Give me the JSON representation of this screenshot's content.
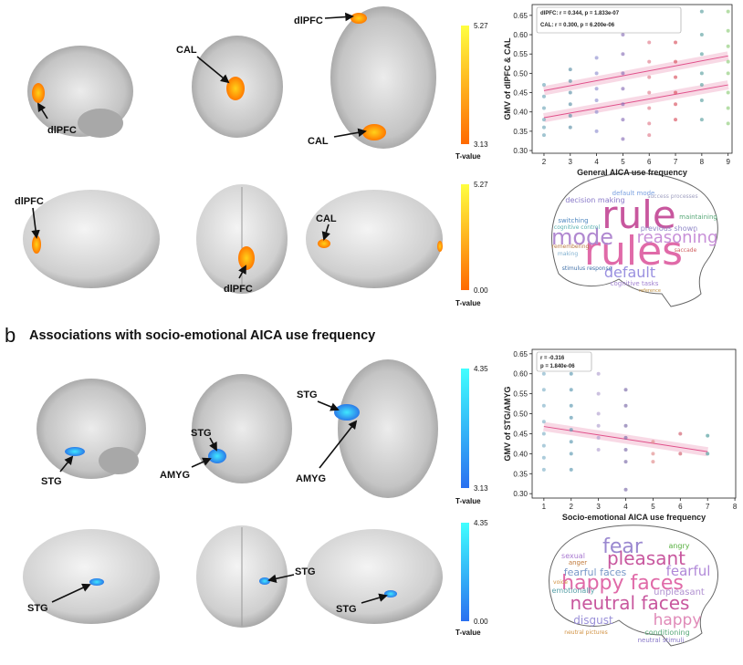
{
  "panel_label": "b",
  "heading": "Associations with socio-emotional AICA use frequency",
  "brain_labels": [
    "dlPFC",
    "CAL",
    "dlPFC",
    "CAL",
    "dlPFC",
    "dlPFC",
    "CAL",
    "STG",
    "STG",
    "AMYG",
    "STG",
    "AMYG",
    "STG",
    "STG",
    "STG"
  ],
  "colorbars": [
    {
      "max": "5.27",
      "min": "3.13",
      "label": "T-value"
    },
    {
      "max": "5.27",
      "min": "0.00",
      "label": "T-value"
    },
    {
      "max": "4.35",
      "min": "3.13",
      "label": "T-value"
    },
    {
      "max": "4.35",
      "min": "0.00",
      "label": "T-value"
    }
  ],
  "wordclouds": [
    [
      "rule",
      "rules",
      "mode",
      "reasoning",
      "default",
      "default mode",
      "decision making",
      "previous shown",
      "maintaining",
      "switching",
      "cognitive control",
      "remembering",
      "making",
      "cognitive tasks",
      "stimulus response",
      "saccade",
      "success processes",
      "reference"
    ],
    [
      "fear",
      "angry",
      "sexual",
      "anger",
      "pleasant",
      "fearful",
      "fearful faces",
      "happy faces",
      "unpleasant",
      "emotionally",
      "neutral faces",
      "disgust",
      "happy",
      "conditioning",
      "neutral stimuli",
      "voice",
      "neutral pictures"
    ]
  ],
  "chart_data": [
    {
      "type": "scatter",
      "xlabel": "General AICA use frequency",
      "ylabel": "GMV of dlPFC & CAL",
      "annotations": [
        "dlPFC: r = 0.344, p = 1.833e-07",
        "CAL: r = 0.300, p = 6.200e-06"
      ],
      "xlim": [
        1.55,
        9.15
      ],
      "ylim": [
        0.293,
        0.678
      ],
      "xticks": [
        2,
        3,
        4,
        5,
        6,
        7,
        8,
        9
      ],
      "yticks": [
        {
          "value": 0.3,
          "label": "0.30"
        },
        0.35,
        {
          "value": 0.4,
          "label": "0.40"
        },
        0.45,
        {
          "value": 0.5,
          "label": "0.50"
        },
        0.55,
        {
          "value": 0.6,
          "label": "0.60"
        },
        0.65
      ],
      "point_colors": [
        "#6fa6b8",
        "#5a8fa6",
        "#8f8fcf",
        "#8a70b8",
        "#e07a8a",
        "#d9505e",
        "#5aa0a0",
        "#8fcc7a"
      ],
      "x": [
        2,
        2,
        2,
        2,
        2,
        2,
        3,
        3,
        3,
        3,
        3,
        3,
        4,
        4,
        4,
        4,
        4,
        4,
        5,
        5,
        5,
        5,
        5,
        5,
        5,
        5,
        6,
        6,
        6,
        6,
        6,
        6,
        6,
        6,
        7,
        7,
        7,
        7,
        7,
        7,
        7,
        8,
        8,
        8,
        8,
        8,
        8,
        8,
        9,
        9,
        9,
        9,
        9,
        9,
        9,
        9
      ],
      "values": [
        0.47,
        0.44,
        0.41,
        0.38,
        0.36,
        0.34,
        0.51,
        0.48,
        0.45,
        0.42,
        0.39,
        0.36,
        0.54,
        0.5,
        0.46,
        0.43,
        0.4,
        0.35,
        0.66,
        0.6,
        0.55,
        0.5,
        0.46,
        0.42,
        0.38,
        0.33,
        0.64,
        0.58,
        0.53,
        0.49,
        0.45,
        0.41,
        0.37,
        0.34,
        0.63,
        0.58,
        0.53,
        0.49,
        0.45,
        0.42,
        0.38,
        0.66,
        0.6,
        0.55,
        0.5,
        0.47,
        0.43,
        0.38,
        0.66,
        0.61,
        0.57,
        0.53,
        0.5,
        0.45,
        0.41,
        0.37
      ],
      "fits": [
        {
          "x": [
            2,
            9
          ],
          "values": [
            0.455,
            0.545
          ]
        },
        {
          "x": [
            2,
            9
          ],
          "values": [
            0.385,
            0.47
          ]
        }
      ],
      "fit_color": "#e0508a"
    },
    {
      "type": "scatter",
      "xlabel": "Socio-emotional AICA use frequency",
      "ylabel": "GMV of STG/AMYG",
      "annotations": [
        "r = -0.316",
        "p = 1.840e-06"
      ],
      "xlim": [
        0.57,
        8.03
      ],
      "ylim": [
        0.289,
        0.661
      ],
      "xticks": [
        1,
        2,
        3,
        4,
        5,
        6,
        7,
        8
      ],
      "yticks": [
        {
          "value": 0.3,
          "label": "0.30"
        },
        0.35,
        {
          "value": 0.4,
          "label": "0.40"
        },
        0.45,
        {
          "value": 0.5,
          "label": "0.50"
        },
        0.55,
        {
          "value": 0.6,
          "label": "0.60"
        },
        0.65
      ],
      "point_colors": [
        "#7fb0c8",
        "#5a98b0",
        "#b0a0d0",
        "#7a68a8",
        "#e08a8a",
        "#d05a6a",
        "#4a9a9a",
        "#4a9a9a"
      ],
      "x": [
        1,
        1,
        1,
        1,
        1,
        1,
        1,
        1,
        1,
        2,
        2,
        2,
        2,
        2,
        2,
        2,
        2,
        3,
        3,
        3,
        3,
        3,
        3,
        4,
        4,
        4,
        4,
        4,
        4,
        4,
        5,
        5,
        5,
        6,
        6,
        7,
        7
      ],
      "values": [
        0.64,
        0.6,
        0.56,
        0.52,
        0.48,
        0.45,
        0.42,
        0.39,
        0.36,
        0.6,
        0.56,
        0.52,
        0.49,
        0.46,
        0.43,
        0.4,
        0.36,
        0.6,
        0.55,
        0.5,
        0.47,
        0.44,
        0.41,
        0.56,
        0.52,
        0.47,
        0.44,
        0.41,
        0.38,
        0.31,
        0.43,
        0.4,
        0.38,
        0.45,
        0.4,
        0.445,
        0.4
      ],
      "fits": [
        {
          "x": [
            1,
            7
          ],
          "values": [
            0.468,
            0.405
          ]
        }
      ],
      "fit_color": "#e0508a"
    }
  ]
}
